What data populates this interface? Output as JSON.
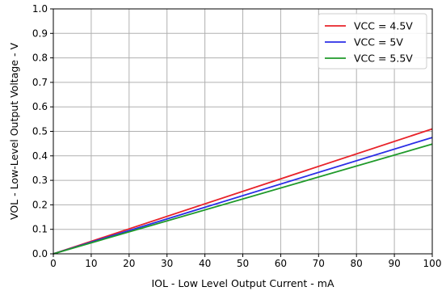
{
  "chart_data": {
    "type": "line",
    "title": "",
    "xlabel": "IOL - Low Level Output Current - mA",
    "ylabel": "VOL - Low-Level Output Voltage - V",
    "xlim": [
      0,
      100
    ],
    "ylim": [
      0,
      1.0
    ],
    "x_ticks": [
      "0",
      "10",
      "20",
      "30",
      "40",
      "50",
      "60",
      "70",
      "80",
      "90",
      "100"
    ],
    "y_ticks": [
      "0.0",
      "0.1",
      "0.2",
      "0.3",
      "0.4",
      "0.5",
      "0.6",
      "0.7",
      "0.8",
      "0.9",
      "1.0"
    ],
    "grid": true,
    "legend_position": "top-right",
    "series": [
      {
        "name": "VCC = 4.5V",
        "color": "#e8232a",
        "x": [
          0,
          100
        ],
        "y": [
          0.0,
          0.51
        ]
      },
      {
        "name": "VCC = 5V",
        "color": "#2b2ee6",
        "x": [
          0,
          100
        ],
        "y": [
          0.0,
          0.475
        ]
      },
      {
        "name": "VCC = 5.5V",
        "color": "#1f9a2a",
        "x": [
          0,
          100
        ],
        "y": [
          0.0,
          0.448
        ]
      }
    ]
  }
}
